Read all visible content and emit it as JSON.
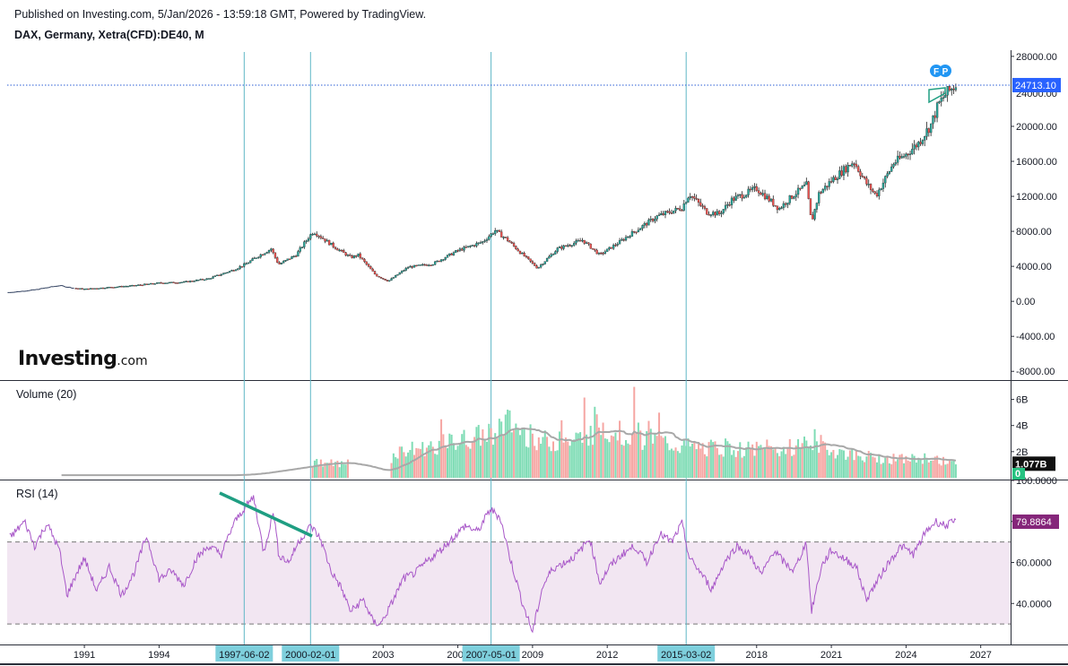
{
  "header": {
    "published": "Published on Investing.com, 5/Jan/2026 - 13:59:18 GMT, Powered by TradingView.",
    "symbol": "DAX, Germany, Xetra(CFD):DE40, M"
  },
  "logo": {
    "text": "Investing",
    "suffix": ".com"
  },
  "colors": {
    "up": "#26a69a",
    "down": "#ef5350",
    "vol_up": "#7fdcb5",
    "vol_down": "#f6a6a3",
    "vline": "#5fb7c6",
    "rsi": "#a857c8",
    "rsi_band": "#f2e6f2",
    "price_line": "#2a5cd6",
    "trend": "#1f9e82",
    "vol_ma": "#a8a8a8",
    "rsi_badge": "#85267a",
    "last_price_badge": "#2962ff"
  },
  "chart_data": [
    {
      "type": "candlestick",
      "pane": "price",
      "xlim": [
        1987.9,
        2028.2
      ],
      "ylim": [
        -9000,
        28500
      ],
      "y_ticks": [
        "28000.00",
        "24000.00",
        "20000.00",
        "16000.00",
        "12000.00",
        "8000.00",
        "4000.00",
        "0.00",
        "-4000.00",
        "-8000.00"
      ],
      "last_price": "24713.10",
      "markers": [
        "F",
        "P"
      ],
      "grid": false,
      "legend": "none",
      "x": [
        1988.0,
        1989.0,
        1990.0,
        1990.6,
        1991.0,
        1992.0,
        1993.0,
        1994.0,
        1995.0,
        1996.0,
        1997.0,
        1997.5,
        1998.0,
        1998.5,
        1998.8,
        1999.5,
        2000.0,
        2000.2,
        2001.0,
        2001.7,
        2002.0,
        2002.7,
        2003.2,
        2004.0,
        2005.0,
        2006.0,
        2007.0,
        2007.5,
        2008.0,
        2008.5,
        2009.2,
        2010.0,
        2011.0,
        2011.7,
        2012.5,
        2013.0,
        2014.0,
        2015.0,
        2015.3,
        2016.0,
        2016.5,
        2017.0,
        2018.0,
        2018.9,
        2019.5,
        2020.0,
        2020.2,
        2020.5,
        2021.0,
        2021.9,
        2022.4,
        2022.8,
        2023.5,
        2024.0,
        2024.5,
        2025.0,
        2025.3,
        2025.6,
        2026.0
      ],
      "y": [
        1000,
        1300,
        1800,
        1500,
        1400,
        1600,
        1800,
        2100,
        2200,
        2600,
        3600,
        4300,
        5200,
        6000,
        4200,
        5300,
        7300,
        8000,
        6300,
        5000,
        5300,
        3000,
        2300,
        3900,
        4300,
        5800,
        6800,
        8100,
        7000,
        5600,
        3800,
        6000,
        7000,
        5300,
        6800,
        7800,
        9700,
        10700,
        12300,
        10200,
        10000,
        11600,
        12900,
        10600,
        12200,
        13300,
        9000,
        12300,
        13800,
        16000,
        13500,
        12100,
        15800,
        16800,
        18100,
        20200,
        22500,
        23700,
        24713
      ]
    },
    {
      "type": "bar",
      "pane": "volume",
      "title": "Volume (20)",
      "ylim": [
        0,
        7000000000
      ],
      "y_ticks": [
        "6B",
        "4B",
        "2B"
      ],
      "last_value": "1.077B",
      "zero_badge": "0",
      "x": [
        1988,
        1997,
        1999.2,
        2000.5,
        2001.5,
        2003.0,
        2003.5,
        2005.0,
        2007.0,
        2008.0,
        2009.0,
        2010.0,
        2011.0,
        2011.7,
        2013.0,
        2015.0,
        2017.0,
        2019.0,
        2020.3,
        2021.0,
        2022.0,
        2023.0,
        2024.0,
        2025.0,
        2026.0
      ],
      "values": [
        200000000,
        200000000,
        800000000,
        1200000000,
        1000000000,
        200000000,
        2000000000,
        2400000000,
        3200000000,
        4200000000,
        3000000000,
        2600000000,
        3000000000,
        4000000000,
        3200000000,
        2400000000,
        2200000000,
        2100000000,
        2900000000,
        2100000000,
        1700000000,
        1500000000,
        1400000000,
        1500000000,
        1077000000
      ]
    },
    {
      "type": "line",
      "pane": "rsi",
      "title": "RSI (14)",
      "ylim": [
        20,
        100
      ],
      "y_ticks": [
        "100.0000",
        "80.0000",
        "60.0000",
        "40.0000"
      ],
      "band": [
        30,
        70
      ],
      "last_value": "79.8864",
      "x": [
        1988.0,
        1988.6,
        1989.0,
        1989.5,
        1990.0,
        1990.3,
        1990.7,
        1991.0,
        1991.5,
        1992.0,
        1992.5,
        1993.0,
        1993.5,
        1994.0,
        1994.5,
        1995.0,
        1995.5,
        1996.0,
        1996.5,
        1997.0,
        1997.4,
        1997.8,
        1998.2,
        1998.6,
        1998.8,
        1999.2,
        1999.6,
        2000.1,
        2000.5,
        2000.9,
        2001.3,
        2001.7,
        2002.2,
        2002.6,
        2002.9,
        2003.3,
        2003.8,
        2004.3,
        2004.8,
        2005.3,
        2005.8,
        2006.3,
        2006.8,
        2007.3,
        2007.7,
        2008.1,
        2008.6,
        2009.0,
        2009.4,
        2009.8,
        2010.3,
        2010.8,
        2011.3,
        2011.7,
        2012.1,
        2012.6,
        2013.1,
        2013.6,
        2014.1,
        2014.6,
        2015.0,
        2015.3,
        2015.7,
        2016.2,
        2016.7,
        2017.2,
        2017.7,
        2018.2,
        2018.7,
        2019.1,
        2019.5,
        2020.0,
        2020.2,
        2020.6,
        2021.0,
        2021.5,
        2022.0,
        2022.4,
        2022.8,
        2023.3,
        2023.8,
        2024.3,
        2024.8,
        2025.2,
        2025.6,
        2026.0
      ],
      "values": [
        72,
        80,
        68,
        79,
        66,
        44,
        55,
        62,
        46,
        58,
        44,
        55,
        73,
        52,
        56,
        49,
        62,
        68,
        64,
        79,
        86,
        92,
        65,
        85,
        64,
        60,
        70,
        78,
        71,
        56,
        48,
        36,
        42,
        31,
        30,
        39,
        52,
        55,
        61,
        66,
        72,
        78,
        75,
        86,
        82,
        62,
        40,
        26,
        48,
        57,
        60,
        64,
        72,
        50,
        58,
        64,
        68,
        60,
        74,
        70,
        79,
        62,
        56,
        47,
        60,
        68,
        64,
        54,
        66,
        60,
        56,
        70,
        36,
        58,
        66,
        62,
        58,
        42,
        50,
        60,
        68,
        64,
        75,
        80,
        78,
        80
      ]
    }
  ],
  "x_axis": {
    "ticks": [
      "1991",
      "1994",
      "2000",
      "2003",
      "2006",
      "2009",
      "2012",
      "2015",
      "2018",
      "2021",
      "2024",
      "2027"
    ],
    "highlighted_dates": [
      "1997-06-02",
      "2000-02-01",
      "2007-05-01",
      "2015-03-02"
    ]
  }
}
